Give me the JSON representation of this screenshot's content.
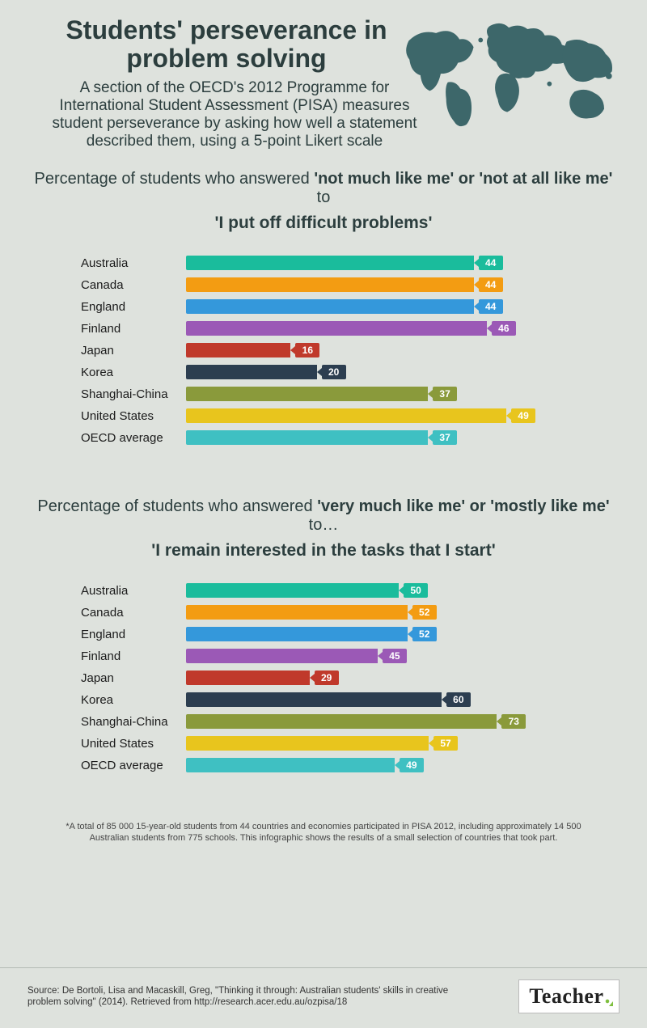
{
  "header": {
    "title": "Students' perseverance in problem solving",
    "subtitle": "A section of the OECD's 2012 Programme for International Student Assessment (PISA) measures student perseverance by asking how well a statement described them, using a 5-point Likert scale",
    "map_color": "#2c5a5e"
  },
  "colors": {
    "background": "#dee2dd",
    "text": "#2c3e3e"
  },
  "charts": [
    {
      "lead_pre": "Percentage of students who answered ",
      "lead_bold": "'not much like me' or 'not at all like me'",
      "lead_post": " to",
      "statement": "'I put off difficult problems'",
      "max": 100,
      "bar_scale": 1.72,
      "rows": [
        {
          "label": "Australia",
          "value": 44,
          "color": "#1abc9c"
        },
        {
          "label": "Canada",
          "value": 44,
          "color": "#f39c12"
        },
        {
          "label": "England",
          "value": 44,
          "color": "#3498db"
        },
        {
          "label": "Finland",
          "value": 46,
          "color": "#9b59b6"
        },
        {
          "label": "Japan",
          "value": 16,
          "color": "#c0392b"
        },
        {
          "label": "Korea",
          "value": 20,
          "color": "#2c3e50"
        },
        {
          "label": "Shanghai-China",
          "value": 37,
          "color": "#8a9a3b"
        },
        {
          "label": "United States",
          "value": 49,
          "color": "#e8c51d"
        },
        {
          "label": "OECD average",
          "value": 37,
          "color": "#3fc0c2"
        }
      ]
    },
    {
      "lead_pre": "Percentage of students who answered ",
      "lead_bold": "'very much like me' or 'mostly like me'",
      "lead_post": " to…",
      "statement": "'I remain interested in the tasks that I start'",
      "max": 100,
      "bar_scale": 1.12,
      "rows": [
        {
          "label": "Australia",
          "value": 50,
          "color": "#1abc9c"
        },
        {
          "label": "Canada",
          "value": 52,
          "color": "#f39c12"
        },
        {
          "label": "England",
          "value": 52,
          "color": "#3498db"
        },
        {
          "label": "Finland",
          "value": 45,
          "color": "#9b59b6"
        },
        {
          "label": "Japan",
          "value": 29,
          "color": "#c0392b"
        },
        {
          "label": "Korea",
          "value": 60,
          "color": "#2c3e50"
        },
        {
          "label": "Shanghai-China",
          "value": 73,
          "color": "#8a9a3b"
        },
        {
          "label": "United States",
          "value": 57,
          "color": "#e8c51d"
        },
        {
          "label": "OECD average",
          "value": 49,
          "color": "#3fc0c2"
        }
      ]
    }
  ],
  "footnote": "*A total of 85 000 15-year-old students from 44 countries and economies participated in PISA 2012, including approximately 14 500 Australian students from 775 schools. This infographic shows the results of a small selection of countries that took part.",
  "footer": {
    "source": "Source: De Bortoli, Lisa and Macaskill, Greg, \"Thinking it through: Australian students' skills in creative problem solving\" (2014). Retrieved from http://research.acer.edu.au/ozpisa/18",
    "brand": "Teacher"
  }
}
